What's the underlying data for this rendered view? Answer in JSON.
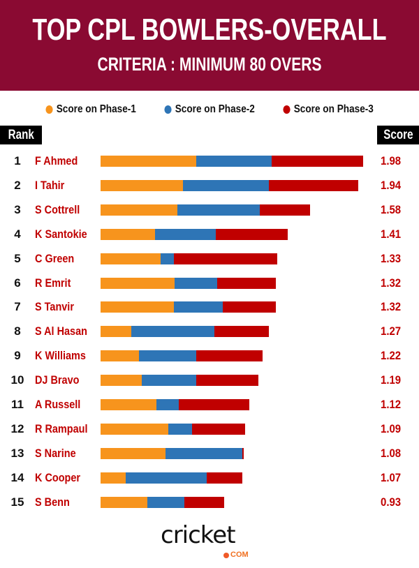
{
  "header": {
    "title": "TOP CPL BOWLERS-OVERALL",
    "subtitle": "CRITERIA : MINIMUM 80 OVERS"
  },
  "table_headers": {
    "rank": "Rank",
    "score": "Score"
  },
  "logo": {
    "word": "cricket",
    "suffix": "COM"
  },
  "colors": {
    "header_bg": "#8a0a32",
    "phase1": "#f7941d",
    "phase2": "#2e75b6",
    "phase3": "#c00000",
    "name": "#c00000"
  },
  "chart_data": {
    "type": "bar",
    "orientation": "horizontal",
    "stacked": true,
    "title": "TOP CPL BOWLERS-OVERALL",
    "subtitle": "CRITERIA : MINIMUM 80 OVERS",
    "legend": [
      "Score on Phase-1",
      "Score on Phase-2",
      "Score on Phase-3"
    ],
    "legend_position": "top",
    "xlim": [
      0,
      2.0
    ],
    "categories": [
      "F Ahmed",
      "I Tahir",
      "S Cottrell",
      "K Santokie",
      "C Green",
      "R Emrit",
      "S Tanvir",
      "S Al Hasan",
      "K Williams",
      "DJ Bravo",
      "A Russell",
      "R Rampaul",
      "S Narine",
      "K Cooper",
      "S Benn"
    ],
    "ranks": [
      "1",
      "2",
      "3",
      "4",
      "5",
      "6",
      "7",
      "8",
      "9",
      "10",
      "11",
      "12",
      "13",
      "14",
      "15"
    ],
    "totals": [
      "1.98",
      "1.94",
      "1.58",
      "1.41",
      "1.33",
      "1.32",
      "1.32",
      "1.27",
      "1.22",
      "1.19",
      "1.12",
      "1.09",
      "1.08",
      "1.07",
      "0.93"
    ],
    "series": [
      {
        "name": "Score on Phase-1",
        "values": [
          0.72,
          0.62,
          0.58,
          0.41,
          0.45,
          0.56,
          0.55,
          0.23,
          0.29,
          0.31,
          0.42,
          0.51,
          0.49,
          0.19,
          0.35
        ]
      },
      {
        "name": "Score on Phase-2",
        "values": [
          0.57,
          0.65,
          0.62,
          0.46,
          0.1,
          0.32,
          0.37,
          0.63,
          0.43,
          0.41,
          0.17,
          0.18,
          0.58,
          0.61,
          0.28
        ]
      },
      {
        "name": "Score on Phase-3",
        "values": [
          0.69,
          0.67,
          0.38,
          0.54,
          0.78,
          0.44,
          0.4,
          0.41,
          0.5,
          0.47,
          0.53,
          0.4,
          0.01,
          0.27,
          0.3
        ]
      }
    ]
  }
}
